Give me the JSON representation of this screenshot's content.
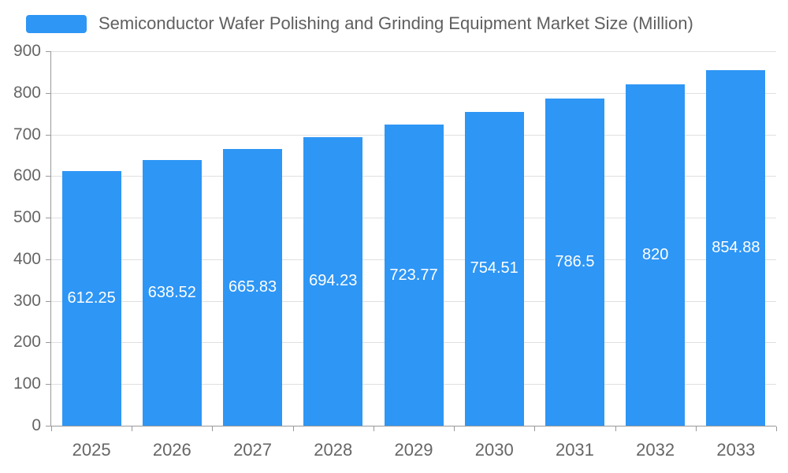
{
  "chart_data": {
    "type": "bar",
    "title": "Semiconductor Wafer Polishing and Grinding Equipment Market Size (Million)",
    "categories": [
      "2025",
      "2026",
      "2027",
      "2028",
      "2029",
      "2030",
      "2031",
      "2032",
      "2033"
    ],
    "values": [
      612.25,
      638.52,
      665.83,
      694.23,
      723.77,
      754.51,
      786.5,
      820,
      854.88
    ],
    "labels": [
      "612.25",
      "638.52",
      "665.83",
      "694.23",
      "723.77",
      "754.51",
      "786.5",
      "820",
      "854.88"
    ],
    "xlabel": "",
    "ylabel": "",
    "ylim": [
      0,
      900
    ],
    "ytick_step": 100,
    "grid": true,
    "legend_position": "top-left",
    "colors": {
      "bar": "#2E96F5",
      "label_text": "#ffffff",
      "axis_text": "#666666",
      "axis_line": "#999999",
      "gridline": "#e0e0e0",
      "title_text": "#5f5f5f",
      "background": "#ffffff"
    }
  }
}
